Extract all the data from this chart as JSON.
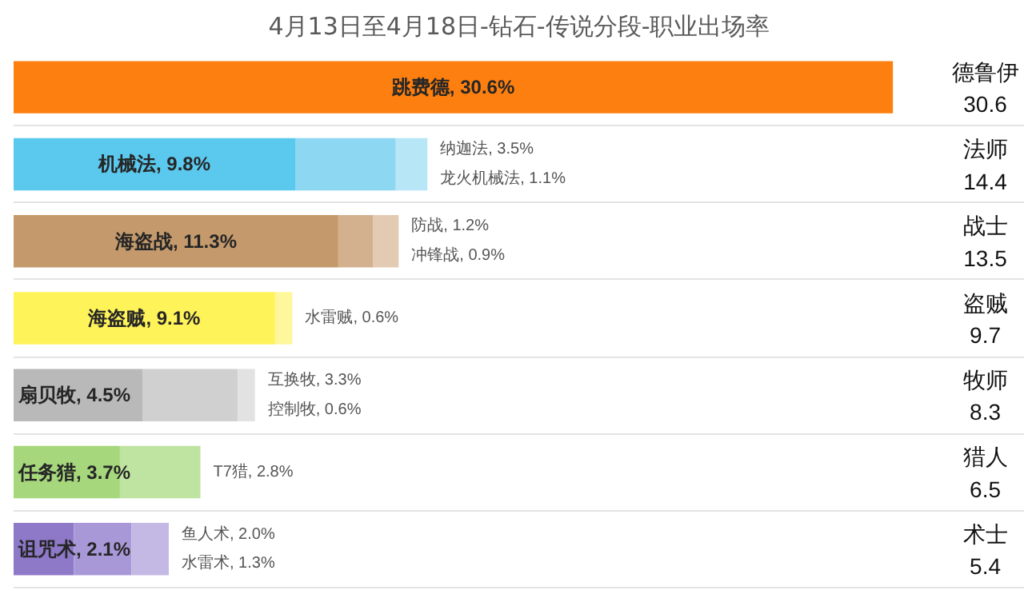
{
  "chart_data": {
    "type": "bar",
    "orientation": "horizontal",
    "stacked": true,
    "title": "4月13日至4月18日-钻石-传说分段-职业出场率",
    "grid": "y",
    "categories": [
      "德鲁伊",
      "法师",
      "战士",
      "盗贼",
      "牧师",
      "猎人",
      "术士"
    ],
    "annotations": [
      "30.6",
      "14.4",
      "13.5",
      "9.7",
      "8.3",
      "6.5",
      "5.4"
    ],
    "series": [
      {
        "values": [
          30.6,
          9.8,
          11.3,
          9.1,
          4.5,
          3.7,
          2.1
        ],
        "colors": [
          "#fd7f0f",
          "#5bc8ee",
          "#c49a6c",
          "#fff35a",
          "#b9b9b9",
          "#a6d77c",
          "#8e78c8"
        ],
        "value_labels": [
          "跳费德, 30.6%",
          "机械法, 9.8%",
          "海盗战, 11.3%",
          "海盗贼, 9.1%",
          "扇贝牧, 4.5%",
          "任务猎, 3.7%",
          "诅咒术, 2.1%"
        ]
      },
      {
        "values": [
          null,
          3.5,
          1.2,
          0.6,
          3.3,
          2.8,
          2.0
        ],
        "colors": [
          "#fd7f0f",
          "#8dd7f2",
          "#d3b18e",
          "#fff79c",
          "#d0d0d0",
          "#bfe3a0",
          "#a898d7"
        ],
        "value_labels": [
          null,
          "纳迦法, 3.5%",
          "防战, 1.2%",
          "水雷贼, 0.6%",
          "互换牧, 3.3%",
          "T7猎, 2.8%",
          "鱼人术, 2.0%"
        ]
      },
      {
        "values": [
          null,
          1.1,
          0.9,
          null,
          0.6,
          null,
          1.3
        ],
        "colors": [
          "#fd7f0f",
          "#b7e6f7",
          "#e2cbb2",
          "#fff79c",
          "#e2e2e2",
          "#bfe3a0",
          "#c4b8e4"
        ],
        "value_labels": [
          null,
          "龙火机械法, 1.1%",
          "冲锋战, 0.9%",
          null,
          "控制牧, 0.6%",
          null,
          "水雷术, 1.3%"
        ]
      }
    ]
  }
}
